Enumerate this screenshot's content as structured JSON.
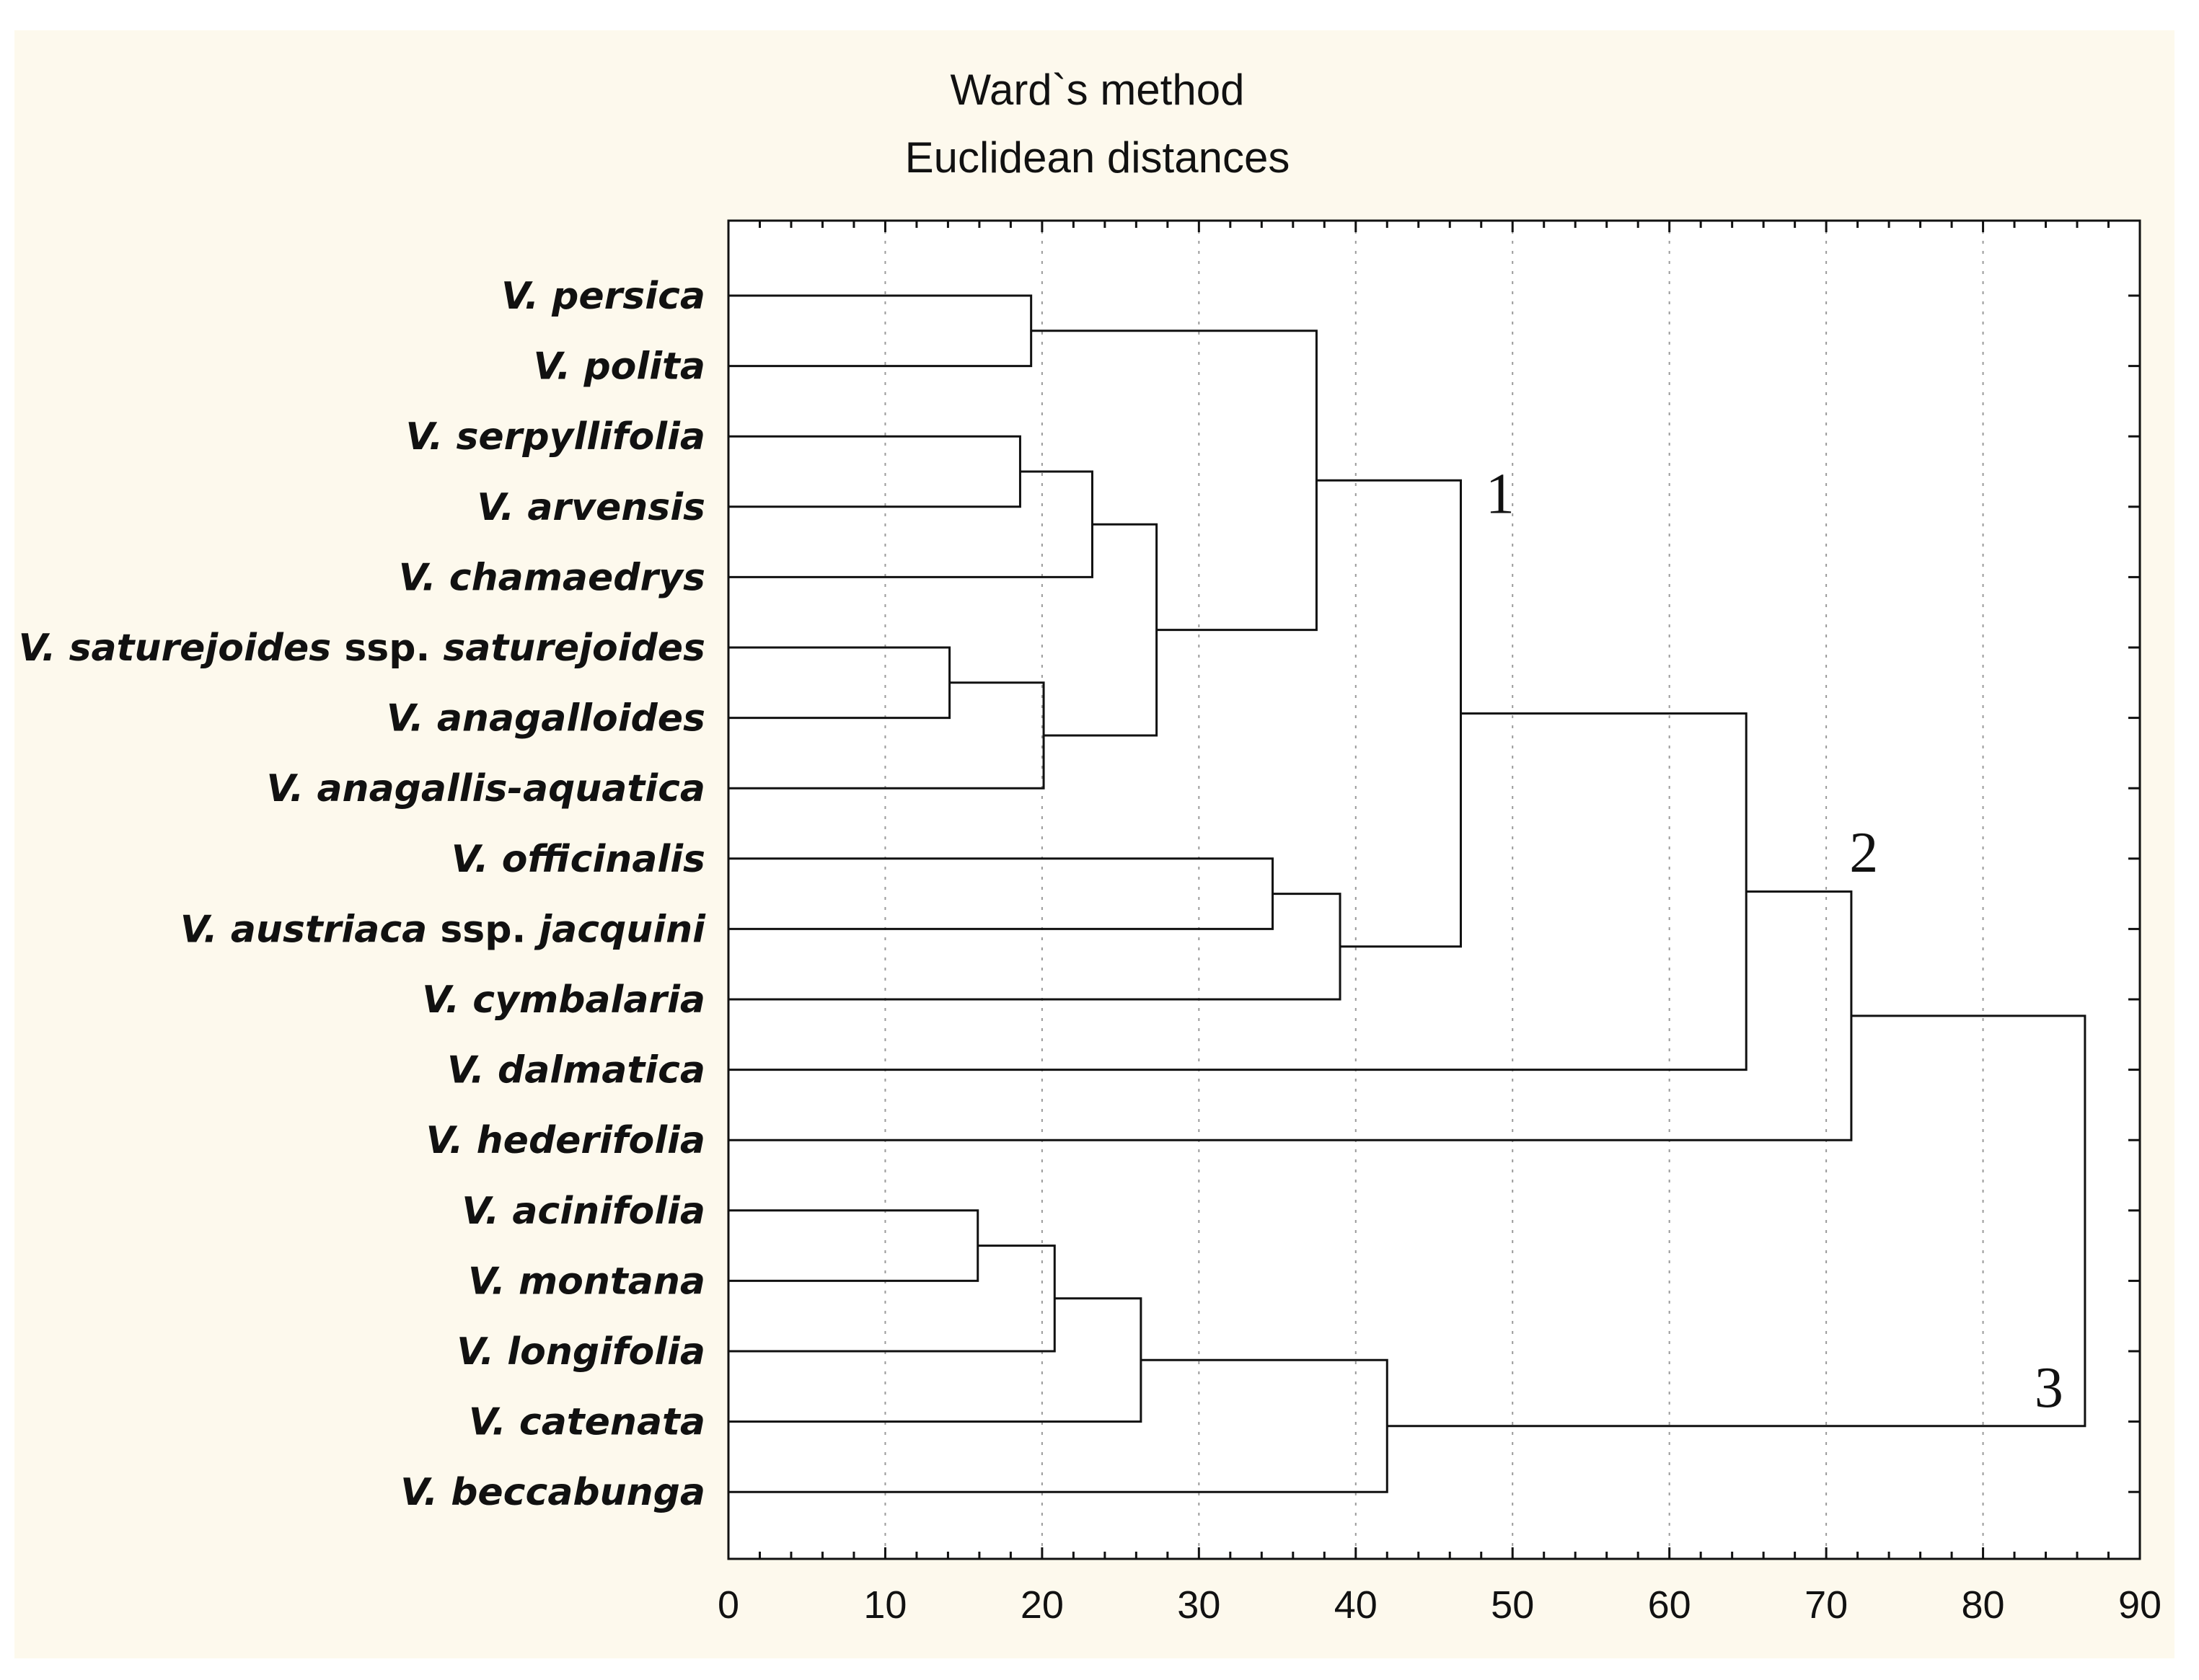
{
  "chart_data": {
    "type": "dendrogram",
    "title": "Ward`s method",
    "subtitle": "Euclidean distances",
    "xlabel": "",
    "xlim": [
      0,
      90
    ],
    "xticks": [
      0,
      10,
      20,
      30,
      40,
      50,
      60,
      70,
      80,
      90
    ],
    "grid": "vertical dotted",
    "leaves": [
      {
        "italic": "V. persica",
        "suffix": ""
      },
      {
        "italic": "V. polita",
        "suffix": ""
      },
      {
        "italic": "V. serpyllifolia",
        "suffix": ""
      },
      {
        "italic": "V. arvensis",
        "suffix": ""
      },
      {
        "italic": "V. chamaedrys",
        "suffix": ""
      },
      {
        "italic": "V. saturejoides",
        "suffix": " ssp. ",
        "italic2": "saturejoides"
      },
      {
        "italic": "V. anagalloides",
        "suffix": ""
      },
      {
        "italic": "V. anagallis-aquatica",
        "suffix": ""
      },
      {
        "italic": "V. officinalis",
        "suffix": ""
      },
      {
        "italic": "V. austriaca",
        "suffix": " ssp. ",
        "italic2": "jacquini"
      },
      {
        "italic": "V. cymbalaria",
        "suffix": ""
      },
      {
        "italic": "V. dalmatica",
        "suffix": ""
      },
      {
        "italic": "V. hederifolia",
        "suffix": ""
      },
      {
        "italic": "V. acinifolia",
        "suffix": ""
      },
      {
        "italic": "V. montana",
        "suffix": ""
      },
      {
        "italic": "V. longifolia",
        "suffix": ""
      },
      {
        "italic": "V. catenata",
        "suffix": ""
      },
      {
        "italic": "V. beccabunga",
        "suffix": ""
      }
    ],
    "merges": [
      {
        "id": "n1",
        "left": 0,
        "right": 1,
        "height": 19.3
      },
      {
        "id": "n2",
        "left": 2,
        "right": 3,
        "height": 18.6
      },
      {
        "id": "n3",
        "left": "n2",
        "right": 4,
        "height": 23.2
      },
      {
        "id": "n4",
        "left": 5,
        "right": 6,
        "height": 14.1
      },
      {
        "id": "n5",
        "left": "n4",
        "right": 7,
        "height": 20.1
      },
      {
        "id": "n6",
        "left": "n3",
        "right": "n5",
        "height": 27.3
      },
      {
        "id": "n7",
        "left": "n1",
        "right": "n6",
        "height": 37.5
      },
      {
        "id": "n8",
        "left": 8,
        "right": 9,
        "height": 34.7
      },
      {
        "id": "n9",
        "left": "n8",
        "right": 10,
        "height": 39.0
      },
      {
        "id": "n10",
        "left": "n7",
        "right": "n9",
        "height": 46.7
      },
      {
        "id": "n11",
        "left": "n10",
        "right": 11,
        "height": 64.9
      },
      {
        "id": "n12",
        "left": "n11",
        "right": 12,
        "height": 71.6
      },
      {
        "id": "n13",
        "left": 13,
        "right": 14,
        "height": 15.9
      },
      {
        "id": "n14",
        "left": "n13",
        "right": 15,
        "height": 20.8
      },
      {
        "id": "n15",
        "left": "n14",
        "right": 16,
        "height": 26.3
      },
      {
        "id": "n16",
        "left": "n15",
        "right": 17,
        "height": 42.0
      },
      {
        "id": "n17",
        "left": "n12",
        "right": "n16",
        "height": 86.5
      }
    ],
    "cluster_labels": [
      {
        "text": "1",
        "x": 49.2,
        "row": 2.8
      },
      {
        "text": "2",
        "x": 72.4,
        "row": 7.9
      },
      {
        "text": "3",
        "x": 84.2,
        "row": 15.5
      }
    ]
  }
}
